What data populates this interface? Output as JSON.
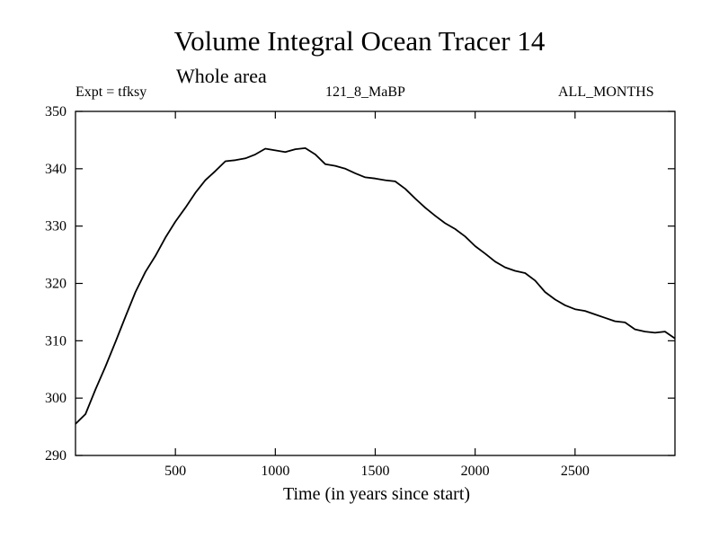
{
  "chart_data": {
    "type": "line",
    "title": "Volume Integral Ocean Tracer 14",
    "subtitle": "Whole area",
    "header_left": "Expt = tfksy",
    "header_center": "121_8_MaBP",
    "header_right": "ALL_MONTHS",
    "xlabel": "Time (in years since start)",
    "ylabel": "",
    "xlim": [
      0,
      3000
    ],
    "ylim": [
      290,
      350
    ],
    "xticks": [
      500,
      1000,
      1500,
      2000,
      2500
    ],
    "yticks": [
      290,
      300,
      310,
      320,
      330,
      340,
      350
    ],
    "grid": false,
    "series": [
      {
        "color": "#000000",
        "x": [
          0,
          50,
          100,
          150,
          200,
          250,
          300,
          350,
          400,
          450,
          500,
          550,
          600,
          650,
          700,
          750,
          800,
          850,
          900,
          950,
          1000,
          1050,
          1100,
          1150,
          1200,
          1250,
          1300,
          1350,
          1400,
          1450,
          1500,
          1550,
          1600,
          1650,
          1700,
          1750,
          1800,
          1850,
          1900,
          1950,
          2000,
          2050,
          2100,
          2150,
          2200,
          2250,
          2300,
          2350,
          2400,
          2450,
          2500,
          2550,
          2600,
          2650,
          2700,
          2750,
          2800,
          2850,
          2900,
          2950,
          3000
        ],
        "y": [
          295.5,
          297.2,
          301.5,
          305.5,
          309.8,
          314.2,
          318.5,
          322.0,
          324.8,
          328.0,
          330.8,
          333.2,
          335.8,
          338.0,
          339.6,
          341.3,
          341.5,
          341.8,
          342.5,
          343.5,
          343.2,
          342.9,
          343.4,
          343.6,
          342.5,
          340.8,
          340.5,
          340.0,
          339.2,
          338.5,
          338.3,
          338.0,
          337.8,
          336.5,
          334.8,
          333.2,
          331.8,
          330.5,
          329.5,
          328.2,
          326.5,
          325.2,
          323.8,
          322.8,
          322.2,
          321.8,
          320.5,
          318.5,
          317.2,
          316.2,
          315.5,
          315.2,
          314.6,
          314.0,
          313.4,
          313.2,
          312.0,
          311.6,
          311.4,
          311.6,
          310.4
        ]
      }
    ]
  }
}
